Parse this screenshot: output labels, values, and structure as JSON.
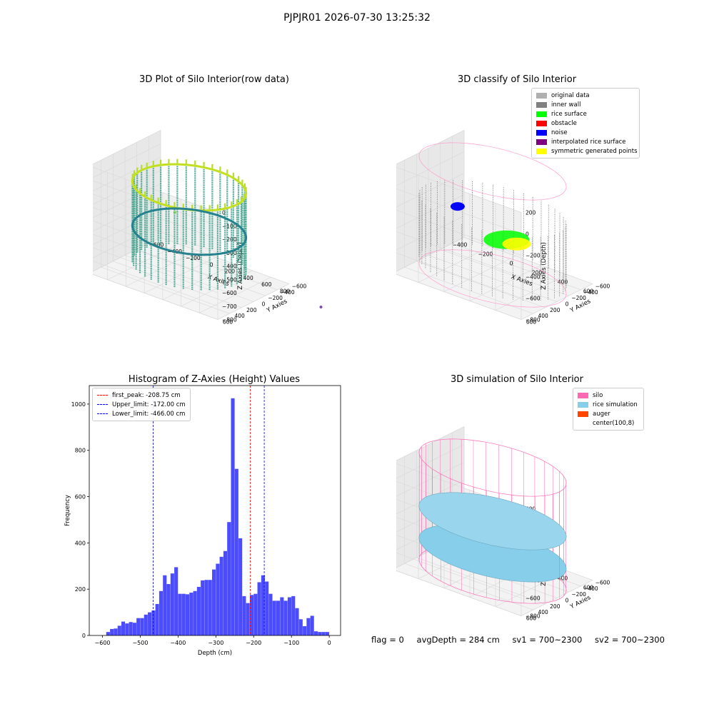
{
  "suptitle": "PJPJR01 2026-07-30 13:25:32",
  "footer": {
    "flag": "flag = 0",
    "avg_depth": "avgDepth = 284 cm",
    "sv1": "sv1 = 700~2300",
    "sv2": "sv2 = 700~2300"
  },
  "colors": {
    "hist_bar": "#4c4cff",
    "first_peak": "#ff0000",
    "limits": "#0000ff",
    "silo": "#ff69b4",
    "rice_simulation": "#87ceeb",
    "auger": "#ff4500",
    "original_data": "#b0b0b0",
    "inner_wall": "#808080",
    "rice_surface": "#00ff00",
    "obstacle": "#ff0000",
    "noise": "#0000ff",
    "interpolated_rice_surface": "#800080",
    "symmetric_generated_points": "#ffff00"
  },
  "chart_data": [
    {
      "type": "scatter",
      "title": "3D Plot of Silo Interior(row data)",
      "xlabel": "X Axies",
      "ylabel": "Y Axies",
      "zlabel": "Z Axies (Depth)",
      "x_ticks": [
        -600,
        -400,
        -200,
        0,
        200,
        400,
        600,
        800
      ],
      "y_ticks": [
        -600,
        -400,
        -200,
        0,
        200,
        400,
        600
      ],
      "z_ticks": [
        0,
        -100,
        -200,
        -300,
        -400,
        -500,
        -600,
        -700,
        -800
      ],
      "colormap": "viridis",
      "grid": true
    },
    {
      "type": "scatter",
      "title": "3D classify of Silo Interior",
      "xlabel": "X Axies",
      "ylabel": "Y Axies",
      "zlabel": "Z Axies (Depth)",
      "x_ticks": [
        -400,
        -200,
        0,
        200,
        400,
        600
      ],
      "y_ticks": [
        -600,
        -400,
        -200,
        0,
        200,
        400,
        600
      ],
      "z_ticks": [
        200,
        0,
        -200,
        -400,
        -600,
        -800
      ],
      "legend_position": "top-right",
      "legend": [
        "original data",
        "inner wall",
        "rice surface",
        "obstacle",
        "noise",
        "interpolated rice surface",
        "symmetric generated points"
      ],
      "grid": true
    },
    {
      "type": "bar",
      "title": "Histogram of Z-Axies (Height) Values",
      "xlabel": "Depth (cm)",
      "ylabel": "Frequency",
      "xlim": [
        -635,
        30
      ],
      "ylim": [
        0,
        1080
      ],
      "x_ticks": [
        -600,
        -500,
        -400,
        -300,
        -200,
        -100,
        0
      ],
      "y_ticks": [
        0,
        200,
        400,
        600,
        800,
        1000
      ],
      "bin_width": 10,
      "bin_starts": [
        -590,
        -580,
        -570,
        -560,
        -550,
        -540,
        -530,
        -520,
        -510,
        -500,
        -490,
        -480,
        -470,
        -460,
        -450,
        -440,
        -430,
        -420,
        -410,
        -400,
        -390,
        -380,
        -370,
        -360,
        -350,
        -340,
        -330,
        -320,
        -310,
        -300,
        -290,
        -280,
        -270,
        -260,
        -250,
        -240,
        -230,
        -220,
        -210,
        -200,
        -190,
        -180,
        -170,
        -160,
        -150,
        -140,
        -130,
        -120,
        -110,
        -100,
        -90,
        -80,
        -70,
        -60,
        -50,
        -40,
        -30,
        -20,
        -10
      ],
      "counts": [
        15,
        28,
        30,
        42,
        60,
        52,
        58,
        55,
        75,
        75,
        90,
        100,
        108,
        136,
        192,
        260,
        222,
        268,
        295,
        180,
        180,
        178,
        185,
        192,
        210,
        238,
        240,
        240,
        285,
        310,
        340,
        365,
        490,
        1025,
        720,
        420,
        170,
        140,
        175,
        180,
        230,
        260,
        233,
        180,
        150,
        150,
        165,
        150,
        165,
        170,
        118,
        70,
        40,
        75,
        85,
        18,
        15,
        15,
        15
      ],
      "vlines": [
        {
          "label": "first_peak: -208.75 cm",
          "x": -208.75,
          "color": "#ff0000"
        },
        {
          "label": "Upper_limit: -172.00 cm",
          "x": -172.0,
          "color": "#0000ff"
        },
        {
          "label": "Lower_limit: -466.00 cm",
          "x": -466.0,
          "color": "#0000ff"
        }
      ],
      "legend_position": "top-left",
      "grid": false
    },
    {
      "type": "scatter",
      "title": "3D simulation of Silo Interior",
      "xlabel": "X Axies",
      "ylabel": "Y Axies",
      "zlabel": "Z Axies (Depth)",
      "x_ticks": [
        -400,
        -200,
        0,
        200,
        400,
        600
      ],
      "y_ticks": [
        -600,
        -400,
        -200,
        0,
        200,
        400,
        600
      ],
      "z_ticks": [
        400,
        200,
        0,
        -200,
        -400,
        -600,
        -800
      ],
      "legend_position": "top-right",
      "legend": [
        "silo",
        "rice simulation",
        "auger",
        "center(100,8)"
      ],
      "grid": true
    }
  ]
}
